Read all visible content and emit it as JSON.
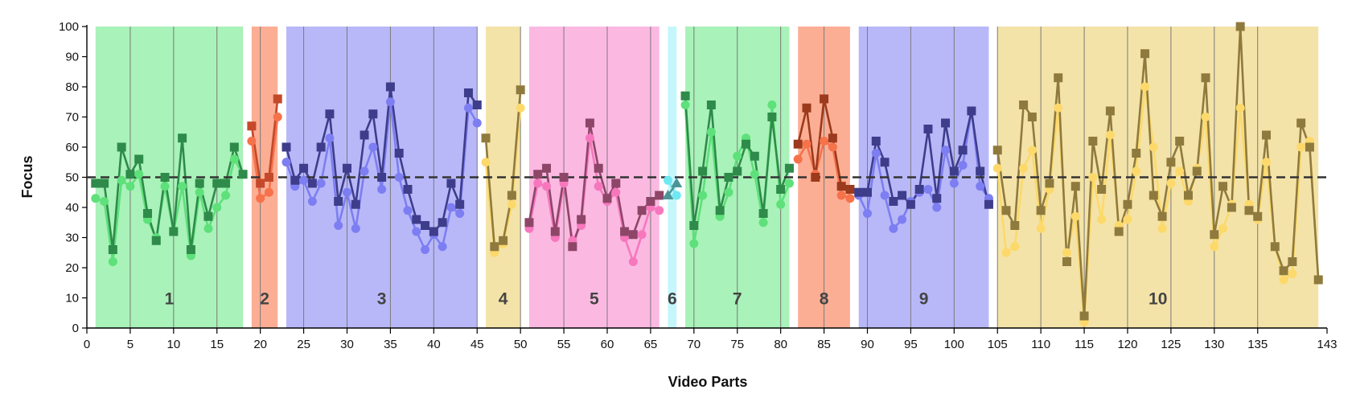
{
  "chart_data": {
    "type": "line",
    "title": "",
    "xlabel": "Video Parts",
    "ylabel": "Focus",
    "xlim": [
      0,
      143
    ],
    "ylim": [
      0,
      100
    ],
    "x_ticks": [
      0,
      5,
      10,
      15,
      20,
      25,
      30,
      35,
      40,
      45,
      50,
      55,
      60,
      65,
      70,
      75,
      80,
      85,
      90,
      95,
      100,
      105,
      110,
      115,
      120,
      125,
      130,
      135,
      143
    ],
    "y_ticks": [
      0,
      10,
      20,
      30,
      40,
      50,
      60,
      70,
      80,
      90,
      100
    ],
    "reference_line": 50,
    "grid": "vertical",
    "legend": "none",
    "segments": [
      {
        "label": "1",
        "range": [
          1,
          18
        ],
        "fill": "#a9f2b9",
        "dark": "#2e8b4a",
        "light": "#5ee07a",
        "marker": "square",
        "x": [
          1,
          2,
          3,
          4,
          5,
          6,
          7,
          8,
          9,
          10,
          11,
          12,
          13,
          14,
          15,
          16,
          17,
          18
        ],
        "dark_values": [
          48,
          48,
          26,
          60,
          51,
          56,
          38,
          29,
          50,
          32,
          63,
          26,
          48,
          37,
          48,
          48,
          60,
          51
        ],
        "light_values": [
          43,
          42,
          22,
          49,
          47,
          51,
          36,
          30,
          47,
          32,
          47,
          24,
          45,
          33,
          40,
          44,
          56,
          51
        ]
      },
      {
        "label": "2",
        "range": [
          19,
          22
        ],
        "fill": "#fcae94",
        "dark": "#c4492a",
        "light": "#f5724b",
        "marker": "square",
        "x": [
          19,
          20,
          21,
          22
        ],
        "dark_values": [
          67,
          48,
          50,
          76
        ],
        "light_values": [
          62,
          43,
          45,
          70
        ]
      },
      {
        "label": "3",
        "range": [
          23,
          45
        ],
        "fill": "#b8b8f9",
        "dark": "#3e3d8c",
        "light": "#7d7ef1",
        "marker": "square",
        "x": [
          23,
          24,
          25,
          26,
          27,
          28,
          29,
          30,
          31,
          32,
          33,
          34,
          35,
          36,
          37,
          38,
          39,
          40,
          41,
          42,
          43,
          44,
          45
        ],
        "dark_values": [
          60,
          49,
          53,
          48,
          60,
          71,
          42,
          53,
          41,
          64,
          71,
          50,
          80,
          58,
          46,
          36,
          34,
          32,
          35,
          48,
          41,
          78,
          74
        ],
        "light_values": [
          55,
          47,
          49,
          42,
          48,
          63,
          34,
          45,
          33,
          52,
          60,
          46,
          75,
          50,
          39,
          32,
          26,
          31,
          27,
          40,
          38,
          73,
          68
        ]
      },
      {
        "label": "4",
        "range": [
          46,
          50
        ],
        "fill": "#f4e3a8",
        "dark": "#8f7a3e",
        "light": "#fcd96a",
        "marker": "square",
        "x": [
          46,
          47,
          48,
          49,
          50
        ],
        "dark_values": [
          63,
          27,
          29,
          44,
          79
        ],
        "light_values": [
          55,
          25,
          28,
          41,
          73
        ]
      },
      {
        "label": "5",
        "range": [
          51,
          66
        ],
        "fill": "#fbb9e2",
        "dark": "#8e4668",
        "light": "#f777bd",
        "marker": "square",
        "x": [
          51,
          52,
          53,
          54,
          55,
          56,
          57,
          58,
          59,
          60,
          61,
          62,
          63,
          64,
          65,
          66
        ],
        "dark_values": [
          35,
          51,
          53,
          32,
          50,
          27,
          36,
          68,
          53,
          43,
          48,
          32,
          31,
          39,
          42,
          44
        ],
        "light_values": [
          33,
          48,
          47,
          30,
          48,
          29,
          34,
          63,
          47,
          42,
          45,
          30,
          22,
          31,
          40,
          39
        ]
      },
      {
        "label": "6",
        "range": [
          67,
          68
        ],
        "fill": "#c4f7fb",
        "dark": "#4b9598",
        "light": "#6fe8f2",
        "marker": "triangle",
        "x": [
          67,
          68
        ],
        "dark_values": [
          44,
          48
        ],
        "light_values": [
          49,
          44
        ]
      },
      {
        "label": "7",
        "range": [
          69,
          81
        ],
        "fill": "#a9f2b9",
        "dark": "#2e8b4a",
        "light": "#5ee07a",
        "marker": "square",
        "x": [
          69,
          70,
          71,
          72,
          73,
          74,
          75,
          76,
          77,
          78,
          79,
          80,
          81
        ],
        "dark_values": [
          77,
          34,
          52,
          74,
          39,
          50,
          52,
          61,
          57,
          38,
          70,
          46,
          53
        ],
        "light_values": [
          74,
          28,
          44,
          65,
          37,
          45,
          57,
          63,
          51,
          35,
          74,
          41,
          48
        ]
      },
      {
        "label": "8",
        "range": [
          82,
          88
        ],
        "fill": "#fcae94",
        "dark": "#9b3a1c",
        "light": "#f5724b",
        "marker": "square",
        "x": [
          82,
          83,
          84,
          85,
          86,
          87,
          88
        ],
        "dark_values": [
          61,
          73,
          50,
          76,
          63,
          47,
          46
        ],
        "light_values": [
          56,
          61,
          51,
          62,
          60,
          44,
          43
        ]
      },
      {
        "label": "9",
        "range": [
          89,
          104
        ],
        "fill": "#b8b8f9",
        "dark": "#3e3d8c",
        "light": "#7d7ef1",
        "marker": "square",
        "x": [
          89,
          90,
          91,
          92,
          93,
          94,
          95,
          96,
          97,
          98,
          99,
          100,
          101,
          102,
          103,
          104
        ],
        "dark_values": [
          45,
          45,
          62,
          55,
          42,
          44,
          41,
          46,
          66,
          43,
          68,
          52,
          59,
          72,
          52,
          41
        ],
        "light_values": [
          44,
          38,
          58,
          44,
          33,
          36,
          42,
          45,
          46,
          40,
          59,
          48,
          54,
          72,
          47,
          43
        ]
      },
      {
        "label": "10",
        "range": [
          105,
          142
        ],
        "fill": "#f4e3a8",
        "dark": "#8f7a3e",
        "light": "#fcd96a",
        "marker": "square",
        "x": [
          105,
          106,
          107,
          108,
          109,
          110,
          111,
          112,
          113,
          114,
          115,
          116,
          117,
          118,
          119,
          120,
          121,
          122,
          123,
          124,
          125,
          126,
          127,
          128,
          129,
          130,
          131,
          132,
          133,
          134,
          135,
          136,
          137,
          138,
          139,
          140,
          141,
          142
        ],
        "dark_values": [
          59,
          39,
          34,
          74,
          70,
          39,
          48,
          83,
          22,
          47,
          4,
          62,
          46,
          72,
          32,
          41,
          58,
          91,
          44,
          37,
          55,
          62,
          44,
          52,
          83,
          31,
          47,
          40,
          100,
          39,
          37,
          64,
          27,
          19,
          22,
          68,
          60,
          16
        ],
        "light_values": [
          53,
          25,
          27,
          53,
          59,
          33,
          46,
          73,
          25,
          37,
          2,
          50,
          36,
          64,
          34,
          36,
          52,
          80,
          60,
          33,
          48,
          52,
          42,
          53,
          70,
          27,
          33,
          41,
          73,
          41,
          36,
          55,
          27,
          16,
          18,
          60,
          62,
          16
        ]
      }
    ]
  }
}
